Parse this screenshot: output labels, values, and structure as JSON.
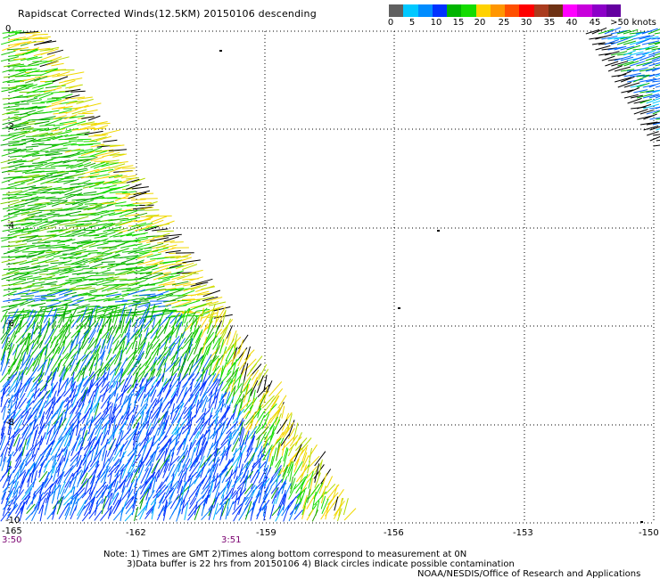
{
  "title": "Rapidscat Corrected Winds(12.5KM) 20150106 descending",
  "colorbar": {
    "colors": [
      "#606060",
      "#00c8ff",
      "#008cff",
      "#0032ff",
      "#00b400",
      "#14dc00",
      "#ffd200",
      "#ff9600",
      "#ff5000",
      "#ff0000",
      "#aa3c1e",
      "#6e3214",
      "#ff00ff",
      "#c800dc",
      "#8c00c8",
      "#6400a0"
    ],
    "labels": [
      "0",
      "5",
      "10",
      "15",
      "20",
      "25",
      "30",
      "35",
      "40",
      "45",
      ">50 knots"
    ]
  },
  "y_axis": {
    "labels": [
      "0",
      "-2",
      "-4",
      "-6",
      "-8",
      "-10"
    ]
  },
  "x_axis": {
    "labels": [
      "-165",
      "-162",
      "-159",
      "-156",
      "-153",
      "-150"
    ]
  },
  "times": [
    "3:50",
    "3:51"
  ],
  "notes": {
    "line1": "Note: 1) Times are GMT 2)Times along bottom correspond to measurement at 0N",
    "line2": "3)Data buffer is 22 hrs from 20150106 4) Black circles indicate possible contamination",
    "line3": "NOAA/NESDIS/Office of Research and Applications"
  }
}
